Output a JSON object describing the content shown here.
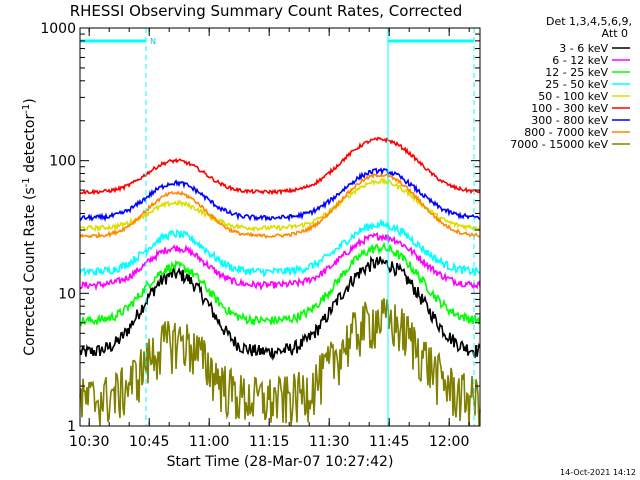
{
  "chart_data": {
    "type": "line",
    "title": "RHESSI Observing Summary Count Rates, Corrected",
    "xlabel": "Start Time (28-Mar-07 10:27:42)",
    "ylabel_parts": [
      "Corrected Count Rate (s",
      "-1",
      " detector",
      "-1",
      ")"
    ],
    "yscale": "log",
    "ylim": [
      1,
      1000
    ],
    "xlim_minutes": [
      0,
      100
    ],
    "x_ticks": [
      {
        "label": "10:30",
        "minute": 2.3
      },
      {
        "label": "10:45",
        "minute": 17.3
      },
      {
        "label": "11:00",
        "minute": 32.3
      },
      {
        "label": "11:15",
        "minute": 47.3
      },
      {
        "label": "11:30",
        "minute": 62.3
      },
      {
        "label": "11:45",
        "minute": 77.3
      },
      {
        "label": "12:00",
        "minute": 92.3
      }
    ],
    "y_tick_labels": [
      {
        "label": "1",
        "value": 1
      },
      {
        "label": "10",
        "value": 10
      },
      {
        "label": "100",
        "value": 100
      },
      {
        "label": "1000",
        "value": 1000
      }
    ],
    "legend_header": [
      "Det 1,3,4,5,6,9,",
      "Att 0"
    ],
    "series": [
      {
        "name": "3 - 6 keV",
        "color": "#000000",
        "base": 3.6,
        "peak1": 14,
        "peak2": 17,
        "noise": 0.12
      },
      {
        "name": "6 - 12 keV",
        "color": "#ff00ff",
        "base": 11.5,
        "peak1": 22,
        "peak2": 27,
        "noise": 0.06
      },
      {
        "name": "12 - 25 keV",
        "color": "#00ff00",
        "base": 6.2,
        "peak1": 16,
        "peak2": 22,
        "noise": 0.08
      },
      {
        "name": "25 - 50 keV",
        "color": "#00ffff",
        "base": 14.5,
        "peak1": 28,
        "peak2": 33,
        "noise": 0.07
      },
      {
        "name": "50 - 100 keV",
        "color": "#dddd00",
        "base": 31,
        "peak1": 48,
        "peak2": 70,
        "noise": 0.04
      },
      {
        "name": "100 - 300 keV",
        "color": "#ff0000",
        "base": 58,
        "peak1": 100,
        "peak2": 145,
        "noise": 0.03
      },
      {
        "name": "300 - 800 keV",
        "color": "#0000ff",
        "base": 37,
        "peak1": 68,
        "peak2": 84,
        "noise": 0.04
      },
      {
        "name": "800 - 7000 keV",
        "color": "#ff8800",
        "base": 27,
        "peak1": 57,
        "peak2": 78,
        "noise": 0.03
      },
      {
        "name": "7000 - 15000 keV",
        "color": "#808000",
        "base": 1.6,
        "peak1": 4.5,
        "peak2": 6.5,
        "noise": 0.45
      }
    ],
    "peaks_minutes": {
      "first": 24,
      "second": 75,
      "width": 9
    },
    "markers": {
      "solid_vlines_minutes": [
        0,
        77
      ],
      "dashed_vlines_minutes": [
        16.5,
        98.5
      ],
      "night_bars": [
        [
          0,
          16.5
        ],
        [
          77,
          98.5
        ]
      ],
      "night_label": "N"
    },
    "grid": false,
    "legend_placement": "right"
  },
  "footer": {
    "timestamp": "14-Oct-2021 14:12"
  }
}
